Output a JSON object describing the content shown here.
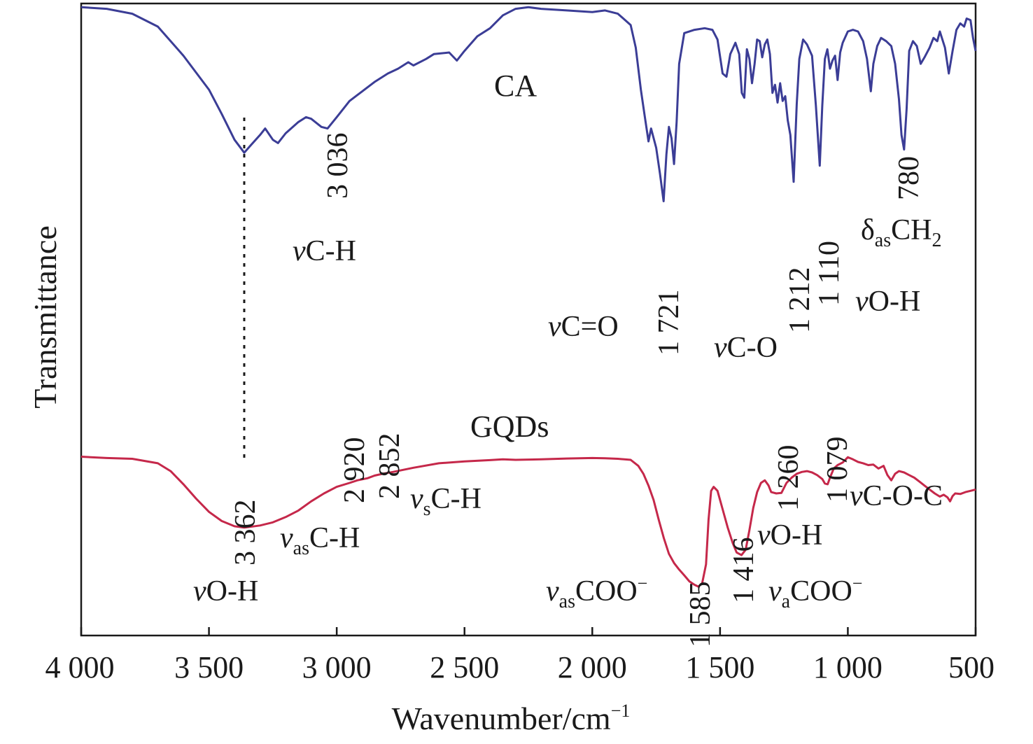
{
  "chart_data": {
    "type": "line",
    "xlabel": "Wavenumber/cm",
    "xlabel_sup": "−1",
    "ylabel": "Transmittance",
    "xlim": [
      4000,
      500
    ],
    "x_reversed": true,
    "y_ticks_shown": false,
    "grid": false,
    "x_ticks": [
      4000,
      3500,
      3000,
      2500,
      2000,
      1500,
      1000,
      500
    ],
    "x_tick_labels": [
      "4 000",
      "3 500",
      "3 000",
      "2 500",
      "2 000",
      "1 500",
      "1 000",
      "500"
    ],
    "reference_line": {
      "x": 3362,
      "style": "dotted"
    },
    "series": [
      {
        "name": "CA",
        "color": "#3b3d96",
        "points": [
          [
            4000,
            0.995
          ],
          [
            3900,
            0.99
          ],
          [
            3800,
            0.975
          ],
          [
            3700,
            0.935
          ],
          [
            3600,
            0.845
          ],
          [
            3500,
            0.74
          ],
          [
            3450,
            0.665
          ],
          [
            3400,
            0.585
          ],
          [
            3362,
            0.545
          ],
          [
            3340,
            0.565
          ],
          [
            3300,
            0.6
          ],
          [
            3280,
            0.62
          ],
          [
            3250,
            0.585
          ],
          [
            3230,
            0.575
          ],
          [
            3200,
            0.605
          ],
          [
            3150,
            0.64
          ],
          [
            3120,
            0.655
          ],
          [
            3100,
            0.65
          ],
          [
            3060,
            0.625
          ],
          [
            3036,
            0.62
          ],
          [
            3000,
            0.655
          ],
          [
            2950,
            0.705
          ],
          [
            2900,
            0.735
          ],
          [
            2850,
            0.765
          ],
          [
            2800,
            0.79
          ],
          [
            2760,
            0.805
          ],
          [
            2720,
            0.825
          ],
          [
            2700,
            0.815
          ],
          [
            2650,
            0.835
          ],
          [
            2620,
            0.85
          ],
          [
            2560,
            0.855
          ],
          [
            2530,
            0.83
          ],
          [
            2500,
            0.86
          ],
          [
            2450,
            0.905
          ],
          [
            2400,
            0.93
          ],
          [
            2350,
            0.97
          ],
          [
            2300,
            0.99
          ],
          [
            2250,
            0.995
          ],
          [
            2200,
            0.99
          ],
          [
            2100,
            0.985
          ],
          [
            2000,
            0.98
          ],
          [
            1950,
            0.985
          ],
          [
            1900,
            0.975
          ],
          [
            1850,
            0.94
          ],
          [
            1830,
            0.87
          ],
          [
            1810,
            0.74
          ],
          [
            1795,
            0.66
          ],
          [
            1780,
            0.58
          ],
          [
            1770,
            0.62
          ],
          [
            1750,
            0.56
          ],
          [
            1735,
            0.48
          ],
          [
            1721,
            0.395
          ],
          [
            1710,
            0.54
          ],
          [
            1700,
            0.625
          ],
          [
            1690,
            0.59
          ],
          [
            1680,
            0.51
          ],
          [
            1670,
            0.64
          ],
          [
            1660,
            0.82
          ],
          [
            1640,
            0.915
          ],
          [
            1600,
            0.925
          ],
          [
            1560,
            0.93
          ],
          [
            1530,
            0.925
          ],
          [
            1510,
            0.895
          ],
          [
            1490,
            0.79
          ],
          [
            1475,
            0.78
          ],
          [
            1460,
            0.85
          ],
          [
            1440,
            0.885
          ],
          [
            1425,
            0.85
          ],
          [
            1415,
            0.73
          ],
          [
            1405,
            0.715
          ],
          [
            1395,
            0.865
          ],
          [
            1385,
            0.835
          ],
          [
            1375,
            0.76
          ],
          [
            1365,
            0.82
          ],
          [
            1355,
            0.895
          ],
          [
            1345,
            0.89
          ],
          [
            1335,
            0.84
          ],
          [
            1325,
            0.88
          ],
          [
            1315,
            0.895
          ],
          [
            1305,
            0.85
          ],
          [
            1295,
            0.73
          ],
          [
            1285,
            0.755
          ],
          [
            1275,
            0.7
          ],
          [
            1265,
            0.76
          ],
          [
            1255,
            0.705
          ],
          [
            1245,
            0.72
          ],
          [
            1235,
            0.645
          ],
          [
            1225,
            0.6
          ],
          [
            1212,
            0.455
          ],
          [
            1200,
            0.695
          ],
          [
            1190,
            0.835
          ],
          [
            1175,
            0.895
          ],
          [
            1160,
            0.88
          ],
          [
            1140,
            0.845
          ],
          [
            1125,
            0.69
          ],
          [
            1110,
            0.505
          ],
          [
            1100,
            0.69
          ],
          [
            1090,
            0.835
          ],
          [
            1080,
            0.865
          ],
          [
            1070,
            0.805
          ],
          [
            1060,
            0.83
          ],
          [
            1050,
            0.845
          ],
          [
            1040,
            0.77
          ],
          [
            1030,
            0.855
          ],
          [
            1020,
            0.885
          ],
          [
            1000,
            0.92
          ],
          [
            980,
            0.925
          ],
          [
            960,
            0.92
          ],
          [
            940,
            0.89
          ],
          [
            925,
            0.835
          ],
          [
            910,
            0.735
          ],
          [
            900,
            0.82
          ],
          [
            885,
            0.875
          ],
          [
            870,
            0.9
          ],
          [
            850,
            0.89
          ],
          [
            830,
            0.875
          ],
          [
            815,
            0.82
          ],
          [
            800,
            0.71
          ],
          [
            790,
            0.6
          ],
          [
            780,
            0.555
          ],
          [
            770,
            0.68
          ],
          [
            760,
            0.86
          ],
          [
            745,
            0.89
          ],
          [
            730,
            0.875
          ],
          [
            715,
            0.82
          ],
          [
            700,
            0.84
          ],
          [
            680,
            0.87
          ],
          [
            665,
            0.9
          ],
          [
            650,
            0.89
          ],
          [
            640,
            0.92
          ],
          [
            620,
            0.87
          ],
          [
            605,
            0.79
          ],
          [
            590,
            0.86
          ],
          [
            575,
            0.925
          ],
          [
            560,
            0.945
          ],
          [
            545,
            0.935
          ],
          [
            535,
            0.96
          ],
          [
            520,
            0.955
          ],
          [
            510,
            0.9
          ],
          [
            500,
            0.86
          ]
        ]
      },
      {
        "name": "GQDs",
        "color": "#c5284a",
        "points": [
          [
            4000,
            0.58
          ],
          [
            3900,
            0.575
          ],
          [
            3800,
            0.572
          ],
          [
            3700,
            0.555
          ],
          [
            3650,
            0.525
          ],
          [
            3600,
            0.475
          ],
          [
            3550,
            0.42
          ],
          [
            3500,
            0.37
          ],
          [
            3450,
            0.335
          ],
          [
            3400,
            0.315
          ],
          [
            3362,
            0.31
          ],
          [
            3300,
            0.318
          ],
          [
            3250,
            0.33
          ],
          [
            3200,
            0.35
          ],
          [
            3150,
            0.375
          ],
          [
            3100,
            0.41
          ],
          [
            3050,
            0.44
          ],
          [
            3000,
            0.465
          ],
          [
            2950,
            0.48
          ],
          [
            2920,
            0.49
          ],
          [
            2880,
            0.498
          ],
          [
            2852,
            0.508
          ],
          [
            2820,
            0.515
          ],
          [
            2780,
            0.522
          ],
          [
            2700,
            0.538
          ],
          [
            2600,
            0.555
          ],
          [
            2500,
            0.562
          ],
          [
            2400,
            0.567
          ],
          [
            2350,
            0.57
          ],
          [
            2300,
            0.568
          ],
          [
            2200,
            0.57
          ],
          [
            2100,
            0.573
          ],
          [
            2000,
            0.575
          ],
          [
            1950,
            0.574
          ],
          [
            1900,
            0.572
          ],
          [
            1850,
            0.568
          ],
          [
            1820,
            0.545
          ],
          [
            1800,
            0.515
          ],
          [
            1780,
            0.47
          ],
          [
            1760,
            0.415
          ],
          [
            1740,
            0.34
          ],
          [
            1720,
            0.27
          ],
          [
            1700,
            0.21
          ],
          [
            1680,
            0.175
          ],
          [
            1660,
            0.15
          ],
          [
            1640,
            0.128
          ],
          [
            1620,
            0.105
          ],
          [
            1600,
            0.092
          ],
          [
            1585,
            0.085
          ],
          [
            1570,
            0.098
          ],
          [
            1555,
            0.17
          ],
          [
            1545,
            0.34
          ],
          [
            1535,
            0.45
          ],
          [
            1525,
            0.465
          ],
          [
            1510,
            0.45
          ],
          [
            1490,
            0.38
          ],
          [
            1470,
            0.31
          ],
          [
            1450,
            0.25
          ],
          [
            1435,
            0.215
          ],
          [
            1416,
            0.205
          ],
          [
            1400,
            0.225
          ],
          [
            1385,
            0.3
          ],
          [
            1370,
            0.385
          ],
          [
            1355,
            0.445
          ],
          [
            1340,
            0.48
          ],
          [
            1325,
            0.49
          ],
          [
            1310,
            0.47
          ],
          [
            1300,
            0.445
          ],
          [
            1280,
            0.44
          ],
          [
            1260,
            0.442
          ],
          [
            1240,
            0.48
          ],
          [
            1220,
            0.5
          ],
          [
            1200,
            0.515
          ],
          [
            1180,
            0.522
          ],
          [
            1160,
            0.525
          ],
          [
            1140,
            0.52
          ],
          [
            1120,
            0.51
          ],
          [
            1100,
            0.495
          ],
          [
            1090,
            0.478
          ],
          [
            1079,
            0.475
          ],
          [
            1070,
            0.5
          ],
          [
            1055,
            0.535
          ],
          [
            1040,
            0.548
          ],
          [
            1020,
            0.558
          ],
          [
            1000,
            0.578
          ],
          [
            980,
            0.57
          ],
          [
            960,
            0.56
          ],
          [
            940,
            0.555
          ],
          [
            920,
            0.548
          ],
          [
            900,
            0.55
          ],
          [
            880,
            0.535
          ],
          [
            860,
            0.545
          ],
          [
            845,
            0.51
          ],
          [
            830,
            0.49
          ],
          [
            815,
            0.515
          ],
          [
            800,
            0.525
          ],
          [
            780,
            0.52
          ],
          [
            760,
            0.51
          ],
          [
            740,
            0.5
          ],
          [
            720,
            0.485
          ],
          [
            700,
            0.47
          ],
          [
            680,
            0.455
          ],
          [
            660,
            0.44
          ],
          [
            640,
            0.428
          ],
          [
            625,
            0.435
          ],
          [
            610,
            0.425
          ],
          [
            600,
            0.41
          ],
          [
            590,
            0.43
          ],
          [
            580,
            0.44
          ],
          [
            560,
            0.438
          ],
          [
            540,
            0.445
          ],
          [
            520,
            0.45
          ],
          [
            500,
            0.455
          ]
        ]
      }
    ],
    "annotations": {
      "ca_label": "CA",
      "gqds_label": "GQDs",
      "peak_3036": "3 036",
      "peak_1721": "1 721",
      "peak_1212": "1 212",
      "peak_1110": "1 110",
      "peak_780": "780",
      "peak_3362": "3 362",
      "peak_2920": "2 920",
      "peak_2852": "2 852",
      "peak_1585": "1 585",
      "peak_1416": "1 416",
      "peak_1260": "1 260",
      "peak_1079": "1 079",
      "ca_vch": {
        "pre": "ν",
        "main": "C-H"
      },
      "ca_vco_double": {
        "pre": "ν",
        "main": "C=O"
      },
      "ca_vco_single": {
        "pre": "ν",
        "main": "C-O"
      },
      "ca_voh": {
        "pre": "ν",
        "main": "O-H"
      },
      "ca_delta_ch2": {
        "pre": "δ",
        "sub": "as",
        "main": "CH",
        "sub2": "2"
      },
      "g_voh": {
        "pre": "ν",
        "main": "O-H"
      },
      "g_vas_ch": {
        "pre": "ν",
        "sub": "as",
        "main": "C-H"
      },
      "g_vs_ch": {
        "pre": "ν",
        "sub": "s",
        "main": "C-H"
      },
      "g_vas_coo": {
        "pre": "ν",
        "sub": "as",
        "main": "COO",
        "sup": "−"
      },
      "g_va_coo": {
        "pre": "ν",
        "sub": "a",
        "main": "COO",
        "sup": "−"
      },
      "g_voh2": {
        "pre": "ν",
        "main": "O-H"
      },
      "g_vcoc": {
        "pre": "ν",
        "main": "C-O-C"
      }
    }
  }
}
